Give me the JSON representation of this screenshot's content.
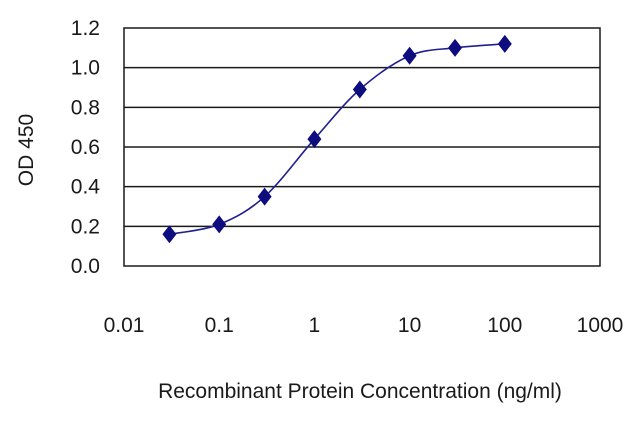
{
  "chart_data": {
    "type": "line",
    "title": "",
    "xlabel": "Recombinant Protein Concentration (ng/ml)",
    "ylabel": "OD 450",
    "xscale": "log",
    "xlim": [
      0.01,
      1000
    ],
    "ylim": [
      0.0,
      1.2
    ],
    "xticks": [
      "0.01",
      "0.1",
      "1",
      "10",
      "100",
      "1000"
    ],
    "yticks": [
      "0.0",
      "0.2",
      "0.4",
      "0.6",
      "0.8",
      "1.0",
      "1.2"
    ],
    "grid": "horizontal",
    "legend": "none",
    "colors": {
      "series": "#1f1f8f",
      "marker": "#0d0d80",
      "grid": "#1a1a1a"
    },
    "series": [
      {
        "marker": "diamond",
        "x": [
          0.03,
          0.1,
          0.3,
          1,
          3,
          10,
          30,
          100
        ],
        "y": [
          0.16,
          0.21,
          0.35,
          0.64,
          0.89,
          1.06,
          1.1,
          1.12
        ]
      }
    ]
  }
}
